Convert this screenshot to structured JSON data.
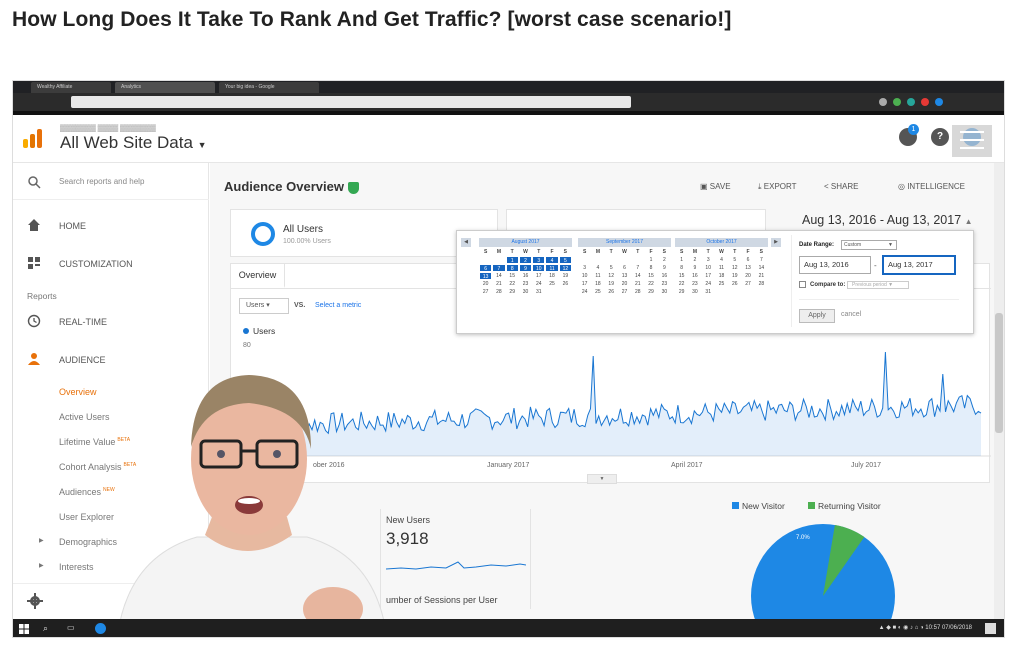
{
  "headline": "How Long Does It Take To Rank And Get Traffic? [worst case scenario!]",
  "browser": {
    "tabs": [
      "Wealthy Affiliate",
      "Analytics",
      "Your big idea - Google"
    ]
  },
  "header": {
    "property": "All Web Site Data",
    "notification_count": "1"
  },
  "sidebar": {
    "search_placeholder": "Search reports and help",
    "home": "HOME",
    "customization": "CUSTOMIZATION",
    "reports_heading": "Reports",
    "realtime": "REAL-TIME",
    "audience": "AUDIENCE",
    "subitems": [
      "Overview",
      "Active Users",
      "Lifetime Value",
      "Cohort Analysis",
      "Audiences",
      "User Explorer",
      "Demographics",
      "Interests"
    ],
    "badges": {
      "lifetime": "BETA",
      "cohort": "BETA",
      "audiences": "NEW"
    }
  },
  "main": {
    "title": "Audience Overview",
    "toolbar": {
      "save": "SAVE",
      "export": "EXPORT",
      "share": "SHARE",
      "intelligence": "INTELLIGENCE"
    },
    "segment": {
      "name": "All Users",
      "pct": "100.00% Users"
    },
    "date_range": "Aug 13, 2016 - Aug 13, 2017",
    "overview_tab": "Overview",
    "metric_select": "Users",
    "vs": "VS.",
    "select_metric": "Select a metric",
    "legend_users": "Users",
    "y_max": "80",
    "x_labels": [
      "ober 2016",
      "January 2017",
      "April 2017",
      "July 2017"
    ],
    "pie_legend": {
      "new": "New Visitor",
      "returning": "Returning Visitor"
    },
    "pie_pct": "7.0%",
    "new_users_label": "New Users",
    "new_users_value": "3,918",
    "sessions_label": "umber of Sessions per User",
    "colors": {
      "accent": "#1565c0",
      "line": "#1976d2",
      "returning": "#4caf50",
      "ga_orange": "#e8710a"
    }
  },
  "calendar": {
    "months": [
      "August 2017",
      "September 2017",
      "October 2017"
    ],
    "day_headers": [
      "S",
      "M",
      "T",
      "W",
      "T",
      "F",
      "S"
    ],
    "aug": [
      "",
      "",
      "1",
      "2",
      "3",
      "4",
      "5",
      "6",
      "7",
      "8",
      "9",
      "10",
      "11",
      "12",
      "13",
      "14",
      "15",
      "16",
      "17",
      "18",
      "19",
      "20",
      "21",
      "22",
      "23",
      "24",
      "25",
      "26",
      "27",
      "28",
      "29",
      "30",
      "31"
    ],
    "sep": [
      "",
      "",
      "",
      "",
      "",
      "1",
      "2",
      "3",
      "4",
      "5",
      "6",
      "7",
      "8",
      "9",
      "10",
      "11",
      "12",
      "13",
      "14",
      "15",
      "16",
      "17",
      "18",
      "19",
      "20",
      "21",
      "22",
      "23",
      "24",
      "25",
      "26",
      "27",
      "28",
      "29",
      "30"
    ],
    "oct": [
      "1",
      "2",
      "3",
      "4",
      "5",
      "6",
      "7",
      "8",
      "9",
      "10",
      "11",
      "12",
      "13",
      "14",
      "15",
      "16",
      "17",
      "18",
      "19",
      "20",
      "21",
      "22",
      "23",
      "24",
      "25",
      "26",
      "27",
      "28",
      "29",
      "30",
      "31"
    ],
    "date_range_label": "Date Range:",
    "date_range_select": "Custom",
    "start": "Aug 13, 2016",
    "end": "Aug 13, 2017",
    "compare": "Compare to:",
    "compare_select": "Previous period",
    "apply": "Apply",
    "cancel": "cancel"
  },
  "taskbar": {
    "time": "10:57",
    "date": "07/06/2018"
  }
}
